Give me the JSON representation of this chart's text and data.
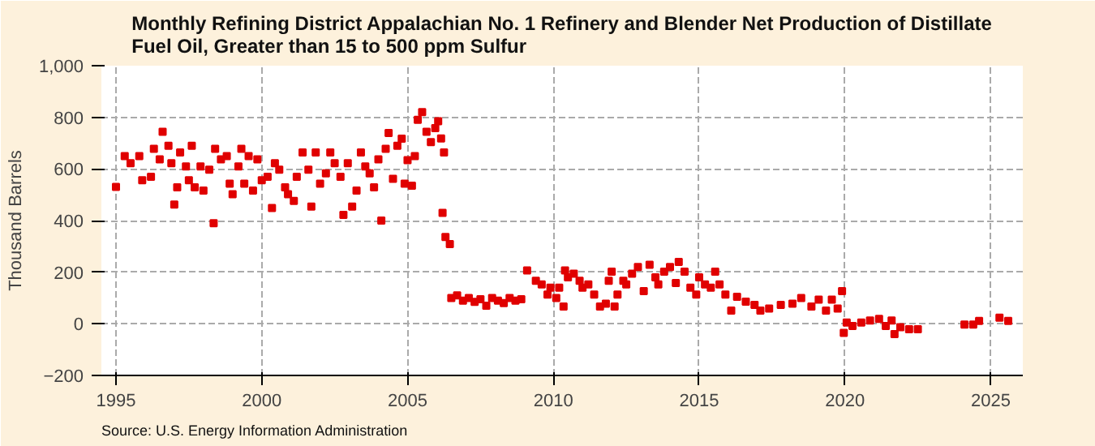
{
  "chart_data": {
    "type": "scatter",
    "title": "Monthly Refining District Appalachian No. 1 Refinery and Blender Net Production of Distillate Fuel Oil, Greater than 15 to 500 ppm Sulfur",
    "ylabel": "Thousand Barrels",
    "annotations": [
      "Source: U.S. Energy Information Administration"
    ],
    "xlim": [
      1994.5,
      2026.1
    ],
    "xticks": [
      1995,
      2000,
      2005,
      2010,
      2015,
      2020,
      2025
    ],
    "ylim": [
      -200,
      1000
    ],
    "yticks": [
      -200,
      0,
      200,
      400,
      600,
      800,
      {
        "value": 1000,
        "label": "1,000"
      }
    ],
    "grid": true,
    "marker": "square",
    "series": [
      {
        "color": "#e00000",
        "x": [
          1995.0,
          1995.3,
          1995.5,
          1995.8,
          1995.9,
          1996.2,
          1996.3,
          1996.5,
          1996.6,
          1996.8,
          1996.9,
          1997.0,
          1997.1,
          1997.2,
          1997.4,
          1997.5,
          1997.6,
          1997.7,
          1997.9,
          1998.0,
          1998.2,
          1998.35,
          1998.4,
          1998.6,
          1998.8,
          1998.9,
          1999.0,
          1999.2,
          1999.3,
          1999.4,
          1999.55,
          1999.7,
          1999.85,
          2000.0,
          2000.2,
          2000.35,
          2000.45,
          2000.6,
          2000.8,
          2000.9,
          2001.1,
          2001.2,
          2001.4,
          2001.6,
          2001.7,
          2001.85,
          2002.0,
          2002.2,
          2002.35,
          2002.5,
          2002.7,
          2002.8,
          2002.95,
          2003.1,
          2003.25,
          2003.4,
          2003.55,
          2003.7,
          2003.85,
          2004.0,
          2004.1,
          2004.25,
          2004.35,
          2004.5,
          2004.65,
          2004.8,
          2004.9,
          2005.0,
          2005.15,
          2005.25,
          2005.35,
          2005.5,
          2005.65,
          2005.8,
          2005.95,
          2006.05,
          2006.15,
          2006.2,
          2006.25,
          2006.3,
          2006.45,
          2006.5,
          2006.7,
          2006.9,
          2007.1,
          2007.3,
          2007.5,
          2007.7,
          2007.9,
          2008.1,
          2008.3,
          2008.5,
          2008.7,
          2008.9,
          2009.1,
          2009.4,
          2009.6,
          2009.8,
          2009.9,
          2010.1,
          2010.2,
          2010.35,
          2010.4,
          2010.5,
          2010.7,
          2010.9,
          2011.0,
          2011.2,
          2011.4,
          2011.6,
          2011.8,
          2011.9,
          2012.0,
          2012.1,
          2012.2,
          2012.4,
          2012.5,
          2012.7,
          2012.9,
          2013.1,
          2013.3,
          2013.5,
          2013.6,
          2013.8,
          2014.0,
          2014.2,
          2014.3,
          2014.5,
          2014.7,
          2014.9,
          2015.0,
          2015.2,
          2015.4,
          2015.55,
          2015.7,
          2015.9,
          2016.1,
          2016.3,
          2016.6,
          2016.9,
          2017.1,
          2017.4,
          2017.8,
          2018.2,
          2018.5,
          2018.85,
          2019.1,
          2019.35,
          2019.55,
          2019.75,
          2019.9,
          2019.96,
          2020.06,
          2020.26,
          2020.56,
          2020.86,
          2021.17,
          2021.4,
          2021.6,
          2021.7,
          2021.9,
          2022.2,
          2022.5,
          2024.1,
          2024.4,
          2024.6,
          2025.3,
          2025.6
        ],
        "values": [
          530,
          650,
          622,
          650,
          556,
          570,
          678,
          637,
          744,
          690,
          622,
          462,
          529,
          664,
          610,
          556,
          690,
          529,
          610,
          516,
          597,
          390,
          678,
          637,
          650,
          543,
          502,
          610,
          678,
          543,
          650,
          516,
          637,
          556,
          570,
          449,
          622,
          597,
          529,
          502,
          476,
          570,
          664,
          597,
          454,
          664,
          543,
          583,
          664,
          622,
          570,
          422,
          622,
          454,
          516,
          664,
          610,
          583,
          529,
          637,
          400,
          678,
          739,
          562,
          690,
          717,
          543,
          634,
          535,
          650,
          790,
          820,
          744,
          704,
          758,
          785,
          718,
          430,
          664,
          336,
          309,
          100,
          110,
          90,
          100,
          85,
          95,
          70,
          100,
          90,
          80,
          100,
          90,
          95,
          207,
          167,
          153,
          113,
          140,
          100,
          140,
          67,
          207,
          180,
          194,
          167,
          140,
          153,
          113,
          67,
          78,
          167,
          202,
          67,
          113,
          167,
          153,
          194,
          220,
          127,
          229,
          180,
          153,
          202,
          220,
          158,
          240,
          202,
          140,
          113,
          180,
          153,
          140,
          202,
          153,
          113,
          51,
          105,
          86,
          73,
          51,
          59,
          73,
          78,
          100,
          67,
          94,
          51,
          94,
          59,
          127,
          -35,
          5,
          -8,
          5,
          13,
          19,
          -8,
          13,
          -40,
          -13,
          -21,
          -21,
          -3,
          -3,
          11,
          24,
          11
        ]
      }
    ]
  }
}
